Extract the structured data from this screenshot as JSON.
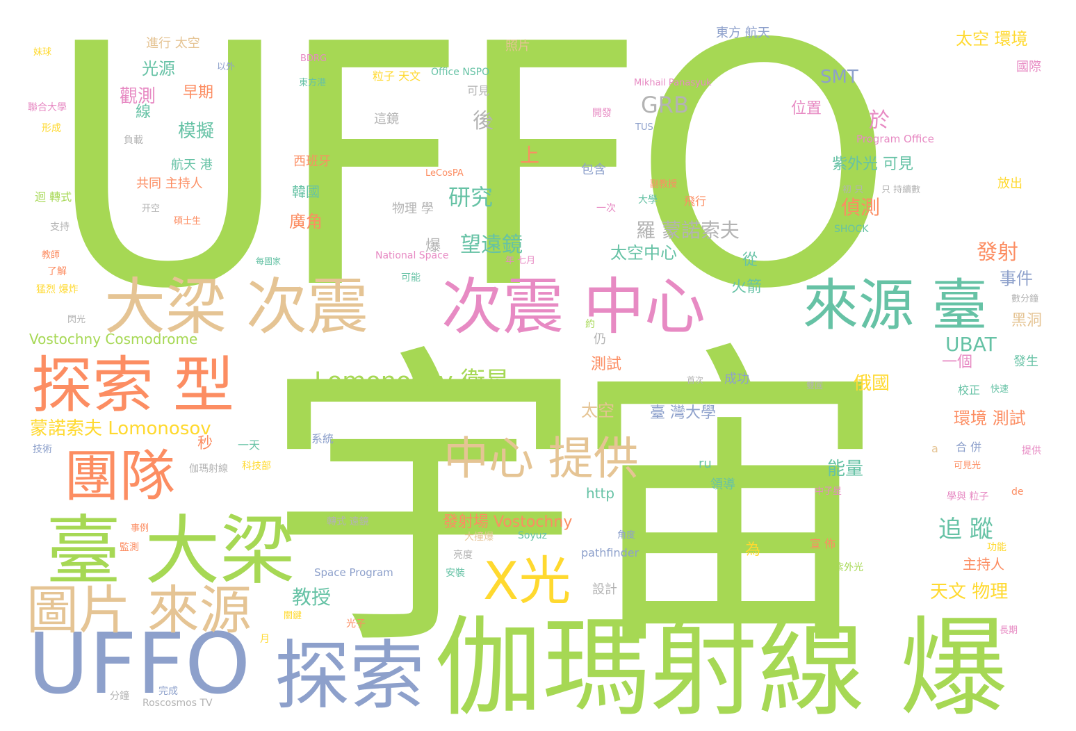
{
  "palette": {
    "green": "#a6d854",
    "tan": "#e5c494",
    "orange": "#fc8d62",
    "blue": "#8da0cb",
    "pink": "#e78ac3",
    "yellow": "#ffd92f",
    "teal": "#66c2a5",
    "gray": "#b3b3b3"
  },
  "words": [
    {
      "id": "yuzhou",
      "text": "宇宙",
      "color": "green"
    },
    {
      "id": "uffo_big",
      "text": "UFFO",
      "color": "green"
    },
    {
      "id": "gamma_burst",
      "text": "伽瑪射線 爆",
      "color": "green"
    },
    {
      "id": "taida_liang",
      "text": "臺 大梁",
      "color": "green"
    },
    {
      "id": "tansuo",
      "text": "探索",
      "color": "blue"
    },
    {
      "id": "uffo_blue",
      "text": "UFFO",
      "color": "blue"
    },
    {
      "id": "daliang_cizhen",
      "text": "大梁 次震",
      "color": "tan"
    },
    {
      "id": "cizhen_zhongxin",
      "text": "次震 中心",
      "color": "pink"
    },
    {
      "id": "laiyuan_tai",
      "text": "來源 臺",
      "color": "teal"
    },
    {
      "id": "tansuo_xing",
      "text": "探索 型",
      "color": "orange"
    },
    {
      "id": "tuandui",
      "text": "團隊",
      "color": "orange"
    },
    {
      "id": "tupian_laiyuan",
      "text": "圖片 來源",
      "color": "tan"
    },
    {
      "id": "zhongxin_tigong",
      "text": "中心 提供",
      "color": "tan"
    },
    {
      "id": "xguang",
      "text": "X光",
      "color": "yellow"
    },
    {
      "id": "lomonosov_sat",
      "text": "Lomonosov 衛星",
      "color": "green"
    },
    {
      "id": "mengnuo_lomonosov",
      "text": "蒙諾索夫 Lomonosov",
      "color": "yellow"
    },
    {
      "id": "vostochny_cosmo",
      "text": "Vostochny Cosmodrome",
      "color": "green"
    },
    {
      "id": "roscosmos",
      "text": "Roscosmos TV",
      "color": "gray"
    },
    {
      "id": "space_program",
      "text": "Space Program",
      "color": "blue"
    },
    {
      "id": "pathfinder",
      "text": "pathfinder",
      "color": "blue"
    },
    {
      "id": "http",
      "text": "http",
      "color": "teal"
    },
    {
      "id": "fashechang",
      "text": "發射場 Vostochny",
      "color": "orange"
    },
    {
      "id": "yanjiu",
      "text": "研究",
      "color": "teal"
    },
    {
      "id": "wangyuanjing",
      "text": "望遠鏡",
      "color": "teal"
    },
    {
      "id": "luomengnuo",
      "text": "羅 蒙諾索夫",
      "color": "gray"
    },
    {
      "id": "grb",
      "text": "GRB",
      "color": "gray"
    },
    {
      "id": "smt",
      "text": "SMT",
      "color": "blue"
    },
    {
      "id": "ubat",
      "text": "UBAT",
      "color": "teal"
    },
    {
      "id": "ru",
      "text": "ru",
      "color": "teal"
    },
    {
      "id": "soyuz",
      "text": "Soyuz",
      "color": "teal"
    },
    {
      "id": "lecospa",
      "text": "LeCosPA",
      "color": "orange"
    },
    {
      "id": "national_space",
      "text": "National Space",
      "color": "pink"
    },
    {
      "id": "office_nspo",
      "text": "Office NSPO",
      "color": "teal"
    },
    {
      "id": "program_office",
      "text": "Program Office",
      "color": "pink"
    },
    {
      "id": "mikhail",
      "text": "Mikhail Panasyuk",
      "color": "pink"
    },
    {
      "id": "shock",
      "text": "SHOCK",
      "color": "teal"
    },
    {
      "id": "tus",
      "text": "TUS",
      "color": "blue"
    },
    {
      "id": "bdrg",
      "text": "BDRG",
      "color": "pink"
    },
    {
      "id": "guangyuan",
      "text": "光源",
      "color": "teal"
    },
    {
      "id": "guance",
      "text": "觀測",
      "color": "pink"
    },
    {
      "id": "zaoqi",
      "text": "早期",
      "color": "orange"
    },
    {
      "id": "moni",
      "text": "模擬",
      "color": "teal"
    },
    {
      "id": "xian",
      "text": "線",
      "color": "teal"
    },
    {
      "id": "jinxing_taikong",
      "text": "進行 太空",
      "color": "tan"
    },
    {
      "id": "zhaopian",
      "text": "照片",
      "color": "tan"
    },
    {
      "id": "dongfang_hangtian",
      "text": "東方 航天",
      "color": "blue"
    },
    {
      "id": "taikong_huanjing",
      "text": "太空 環境",
      "color": "yellow"
    },
    {
      "id": "guoji",
      "text": "國際",
      "color": "pink"
    },
    {
      "id": "weizhi",
      "text": "位置",
      "color": "pink"
    },
    {
      "id": "yu",
      "text": "於",
      "color": "pink"
    },
    {
      "id": "ziwaiguang",
      "text": "紫外光 可見",
      "color": "teal"
    },
    {
      "id": "zhence",
      "text": "偵測",
      "color": "orange"
    },
    {
      "id": "fashe",
      "text": "發射",
      "color": "orange"
    },
    {
      "id": "shijian",
      "text": "事件",
      "color": "blue"
    },
    {
      "id": "heidong",
      "text": "黑洞",
      "color": "tan"
    },
    {
      "id": "yige",
      "text": "一個",
      "color": "pink"
    },
    {
      "id": "faseng",
      "text": "發生",
      "color": "teal"
    },
    {
      "id": "eguo",
      "text": "俄國",
      "color": "yellow"
    },
    {
      "id": "huanjing_ceshi",
      "text": "環境 測試",
      "color": "orange"
    },
    {
      "id": "zhuizong",
      "text": "追 蹤",
      "color": "teal"
    },
    {
      "id": "zhuchiren",
      "text": "主持人",
      "color": "orange"
    },
    {
      "id": "tianwen_wuli",
      "text": "天文 物理",
      "color": "yellow"
    },
    {
      "id": "nengliang",
      "text": "能量",
      "color": "teal"
    },
    {
      "id": "taikong_zhongxin",
      "text": "太空中心",
      "color": "teal"
    },
    {
      "id": "huojian",
      "text": "火箭",
      "color": "teal"
    },
    {
      "id": "ceshi",
      "text": "測試",
      "color": "orange"
    },
    {
      "id": "taikong2",
      "text": "太空",
      "color": "tan"
    },
    {
      "id": "taiwan_daxue",
      "text": "臺 灣大學",
      "color": "blue"
    },
    {
      "id": "chenggong",
      "text": "成功",
      "color": "blue"
    },
    {
      "id": "jiaoshou",
      "text": "教授",
      "color": "teal"
    },
    {
      "id": "guangjiao",
      "text": "廣角",
      "color": "orange"
    },
    {
      "id": "hangtian_gang",
      "text": "航天 港",
      "color": "teal"
    },
    {
      "id": "gongtong",
      "text": "共同 主持人",
      "color": "orange"
    },
    {
      "id": "shang",
      "text": "上",
      "color": "orange"
    },
    {
      "id": "hou",
      "text": "後",
      "color": "gray"
    },
    {
      "id": "wuli_xue",
      "text": "物理 學",
      "color": "gray"
    },
    {
      "id": "bao",
      "text": "爆",
      "color": "gray"
    },
    {
      "id": "xibanya",
      "text": "西班牙",
      "color": "orange"
    },
    {
      "id": "hanguo",
      "text": "韓國",
      "color": "teal"
    },
    {
      "id": "lizi_tianwen",
      "text": "粒子 天文",
      "color": "yellow"
    },
    {
      "id": "kejian",
      "text": "可見",
      "color": "gray"
    },
    {
      "id": "zhejing",
      "text": "這鏡",
      "color": "gray"
    },
    {
      "id": "baohan",
      "text": "包含",
      "color": "blue"
    },
    {
      "id": "weile",
      "text": "為",
      "color": "yellow"
    },
    {
      "id": "xuanchuan",
      "text": "宣 佈",
      "color": "orange"
    },
    {
      "id": "lingdao",
      "text": "領導",
      "color": "teal"
    },
    {
      "id": "fangchu",
      "text": "放出",
      "color": "yellow"
    },
    {
      "id": "lianhe_daxue",
      "text": "聯合大學",
      "color": "pink"
    },
    {
      "id": "xingcheng",
      "text": "形成",
      "color": "yellow"
    },
    {
      "id": "huizhuanshi",
      "text": "迴 轉式",
      "color": "green"
    },
    {
      "id": "zhichi",
      "text": "支持",
      "color": "gray"
    },
    {
      "id": "qiuqiu",
      "text": "妹球",
      "color": "yellow"
    },
    {
      "id": "jiaozheng",
      "text": "校正",
      "color": "teal"
    },
    {
      "id": "hebing",
      "text": "合 併",
      "color": "blue"
    },
    {
      "id": "yitian",
      "text": "一天",
      "color": "teal"
    },
    {
      "id": "miao",
      "text": "秒",
      "color": "orange"
    },
    {
      "id": "jishu",
      "text": "技術",
      "color": "blue"
    },
    {
      "id": "sheji",
      "text": "設計",
      "color": "gray"
    },
    {
      "id": "anzhuang",
      "text": "安裝",
      "color": "teal"
    },
    {
      "id": "zhongzi",
      "text": "中子星",
      "color": "pink"
    },
    {
      "id": "zhigong",
      "text": "提供",
      "color": "pink"
    },
    {
      "id": "ziwai",
      "text": "紫外光",
      "color": "green"
    },
    {
      "id": "changqi",
      "text": "長期",
      "color": "pink"
    },
    {
      "id": "de",
      "text": "de",
      "color": "orange"
    },
    {
      "id": "a",
      "text": "a",
      "color": "tan"
    },
    {
      "id": "xueyu_lizi",
      "text": "學與 粒子",
      "color": "pink"
    },
    {
      "id": "gongneng",
      "text": "功能",
      "color": "yellow"
    },
    {
      "id": "guangzi",
      "text": "光子",
      "color": "orange"
    },
    {
      "id": "yue",
      "text": "月",
      "color": "yellow"
    },
    {
      "id": "fenzhong",
      "text": "分鐘",
      "color": "gray"
    },
    {
      "id": "wancheng",
      "text": "完成",
      "color": "blue"
    },
    {
      "id": "xitong",
      "text": "系統",
      "color": "blue"
    },
    {
      "id": "jiance",
      "text": "監測",
      "color": "orange"
    },
    {
      "id": "shili",
      "text": "事例",
      "color": "orange"
    },
    {
      "id": "dazhuangbao",
      "text": "大撞爆",
      "color": "tan"
    },
    {
      "id": "liangdu",
      "text": "亮度",
      "color": "gray"
    },
    {
      "id": "zhuanshi_zhejing",
      "text": "轉式 遠鏡",
      "color": "gray"
    },
    {
      "id": "kexueji",
      "text": "科技部",
      "color": "yellow"
    },
    {
      "id": "jiama_bao",
      "text": "伽瑪射線",
      "color": "gray"
    },
    {
      "id": "dongfanggang",
      "text": "東方港",
      "color": "teal"
    },
    {
      "id": "fuzai",
      "text": "負載",
      "color": "gray"
    },
    {
      "id": "yiwai",
      "text": "以外",
      "color": "blue"
    },
    {
      "id": "kongjian",
      "text": "开空",
      "color": "gray"
    },
    {
      "id": "shoushi",
      "text": "碩士生",
      "color": "orange"
    },
    {
      "id": "liaojie",
      "text": "了解",
      "color": "orange"
    },
    {
      "id": "menglie",
      "text": "猛烈 爆炸",
      "color": "yellow"
    },
    {
      "id": "shanguang",
      "text": "閃光",
      "color": "gray"
    },
    {
      "id": "jiaoshou2",
      "text": "教師",
      "color": "orange"
    },
    {
      "id": "mu_guojia",
      "text": "每國家",
      "color": "teal"
    },
    {
      "id": "guanjian",
      "text": "關鍵",
      "color": "yellow"
    },
    {
      "id": "dashi",
      "text": "大學",
      "color": "teal"
    },
    {
      "id": "feixing",
      "text": "飛行",
      "color": "orange"
    },
    {
      "id": "yici",
      "text": "一次",
      "color": "pink"
    },
    {
      "id": "fujiaoshou",
      "text": "副教授",
      "color": "orange"
    },
    {
      "id": "cong",
      "text": "從",
      "color": "teal"
    },
    {
      "id": "reng",
      "text": "仍",
      "color": "gray"
    },
    {
      "id": "yue2",
      "text": "約",
      "color": "green"
    },
    {
      "id": "kaifa",
      "text": "開發",
      "color": "pink"
    },
    {
      "id": "shuangxi",
      "text": "雙圓",
      "color": "gray"
    },
    {
      "id": "chengzhang",
      "text": "年 七月",
      "color": "pink"
    },
    {
      "id": "keneng",
      "text": "可能",
      "color": "teal"
    },
    {
      "id": "shucheng",
      "text": "數分鐘",
      "color": "gray"
    },
    {
      "id": "jiaojiao",
      "text": "角度",
      "color": "blue"
    },
    {
      "id": "shouci",
      "text": "首次",
      "color": "gray"
    },
    {
      "id": "dijian",
      "text": "只 持續數",
      "color": "gray"
    },
    {
      "id": "jiande",
      "text": "初 只",
      "color": "gray"
    },
    {
      "id": "kejianguang",
      "text": "可見光",
      "color": "orange"
    },
    {
      "id": "kuaisu",
      "text": "快速",
      "color": "teal"
    }
  ]
}
